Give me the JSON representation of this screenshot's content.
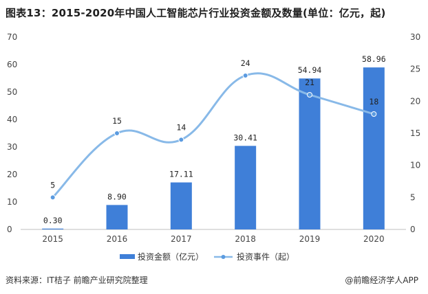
{
  "title": "图表13：2015-2020年中国人工智能芯片行业投资金额及数量(单位：亿元，起)",
  "source": "资料来源：IT桔子 前瞻产业研究院整理",
  "brand": "@前瞻经济学人APP",
  "colors": {
    "bar": "#3f7fd8",
    "line": "#88b9e8",
    "marker": "#5b9be0"
  },
  "chart_data": {
    "type": "bar",
    "categories": [
      "2015",
      "2016",
      "2017",
      "2018",
      "2019",
      "2020"
    ],
    "series": [
      {
        "name": "投资金额（亿元）",
        "type": "bar",
        "axis": "left",
        "values": [
          0.3,
          8.9,
          17.11,
          30.41,
          54.94,
          58.96
        ],
        "labels": [
          "0.30",
          "8.90",
          "17.11",
          "30.41",
          "54.94",
          "58.96"
        ]
      },
      {
        "name": "投资事件（起）",
        "type": "line",
        "axis": "right",
        "values": [
          5,
          15,
          14,
          24,
          21,
          18
        ],
        "labels": [
          "5",
          "15",
          "14",
          "24",
          "21",
          "18"
        ]
      }
    ],
    "y_left": {
      "min": 0,
      "max": 70,
      "ticks": [
        "0",
        "10",
        "20",
        "30",
        "40",
        "50",
        "60",
        "70"
      ]
    },
    "y_right": {
      "min": 0,
      "max": 30,
      "ticks": [
        "0",
        "5",
        "10",
        "15",
        "20",
        "25",
        "30"
      ]
    },
    "grid": false,
    "legend_position": "bottom"
  }
}
